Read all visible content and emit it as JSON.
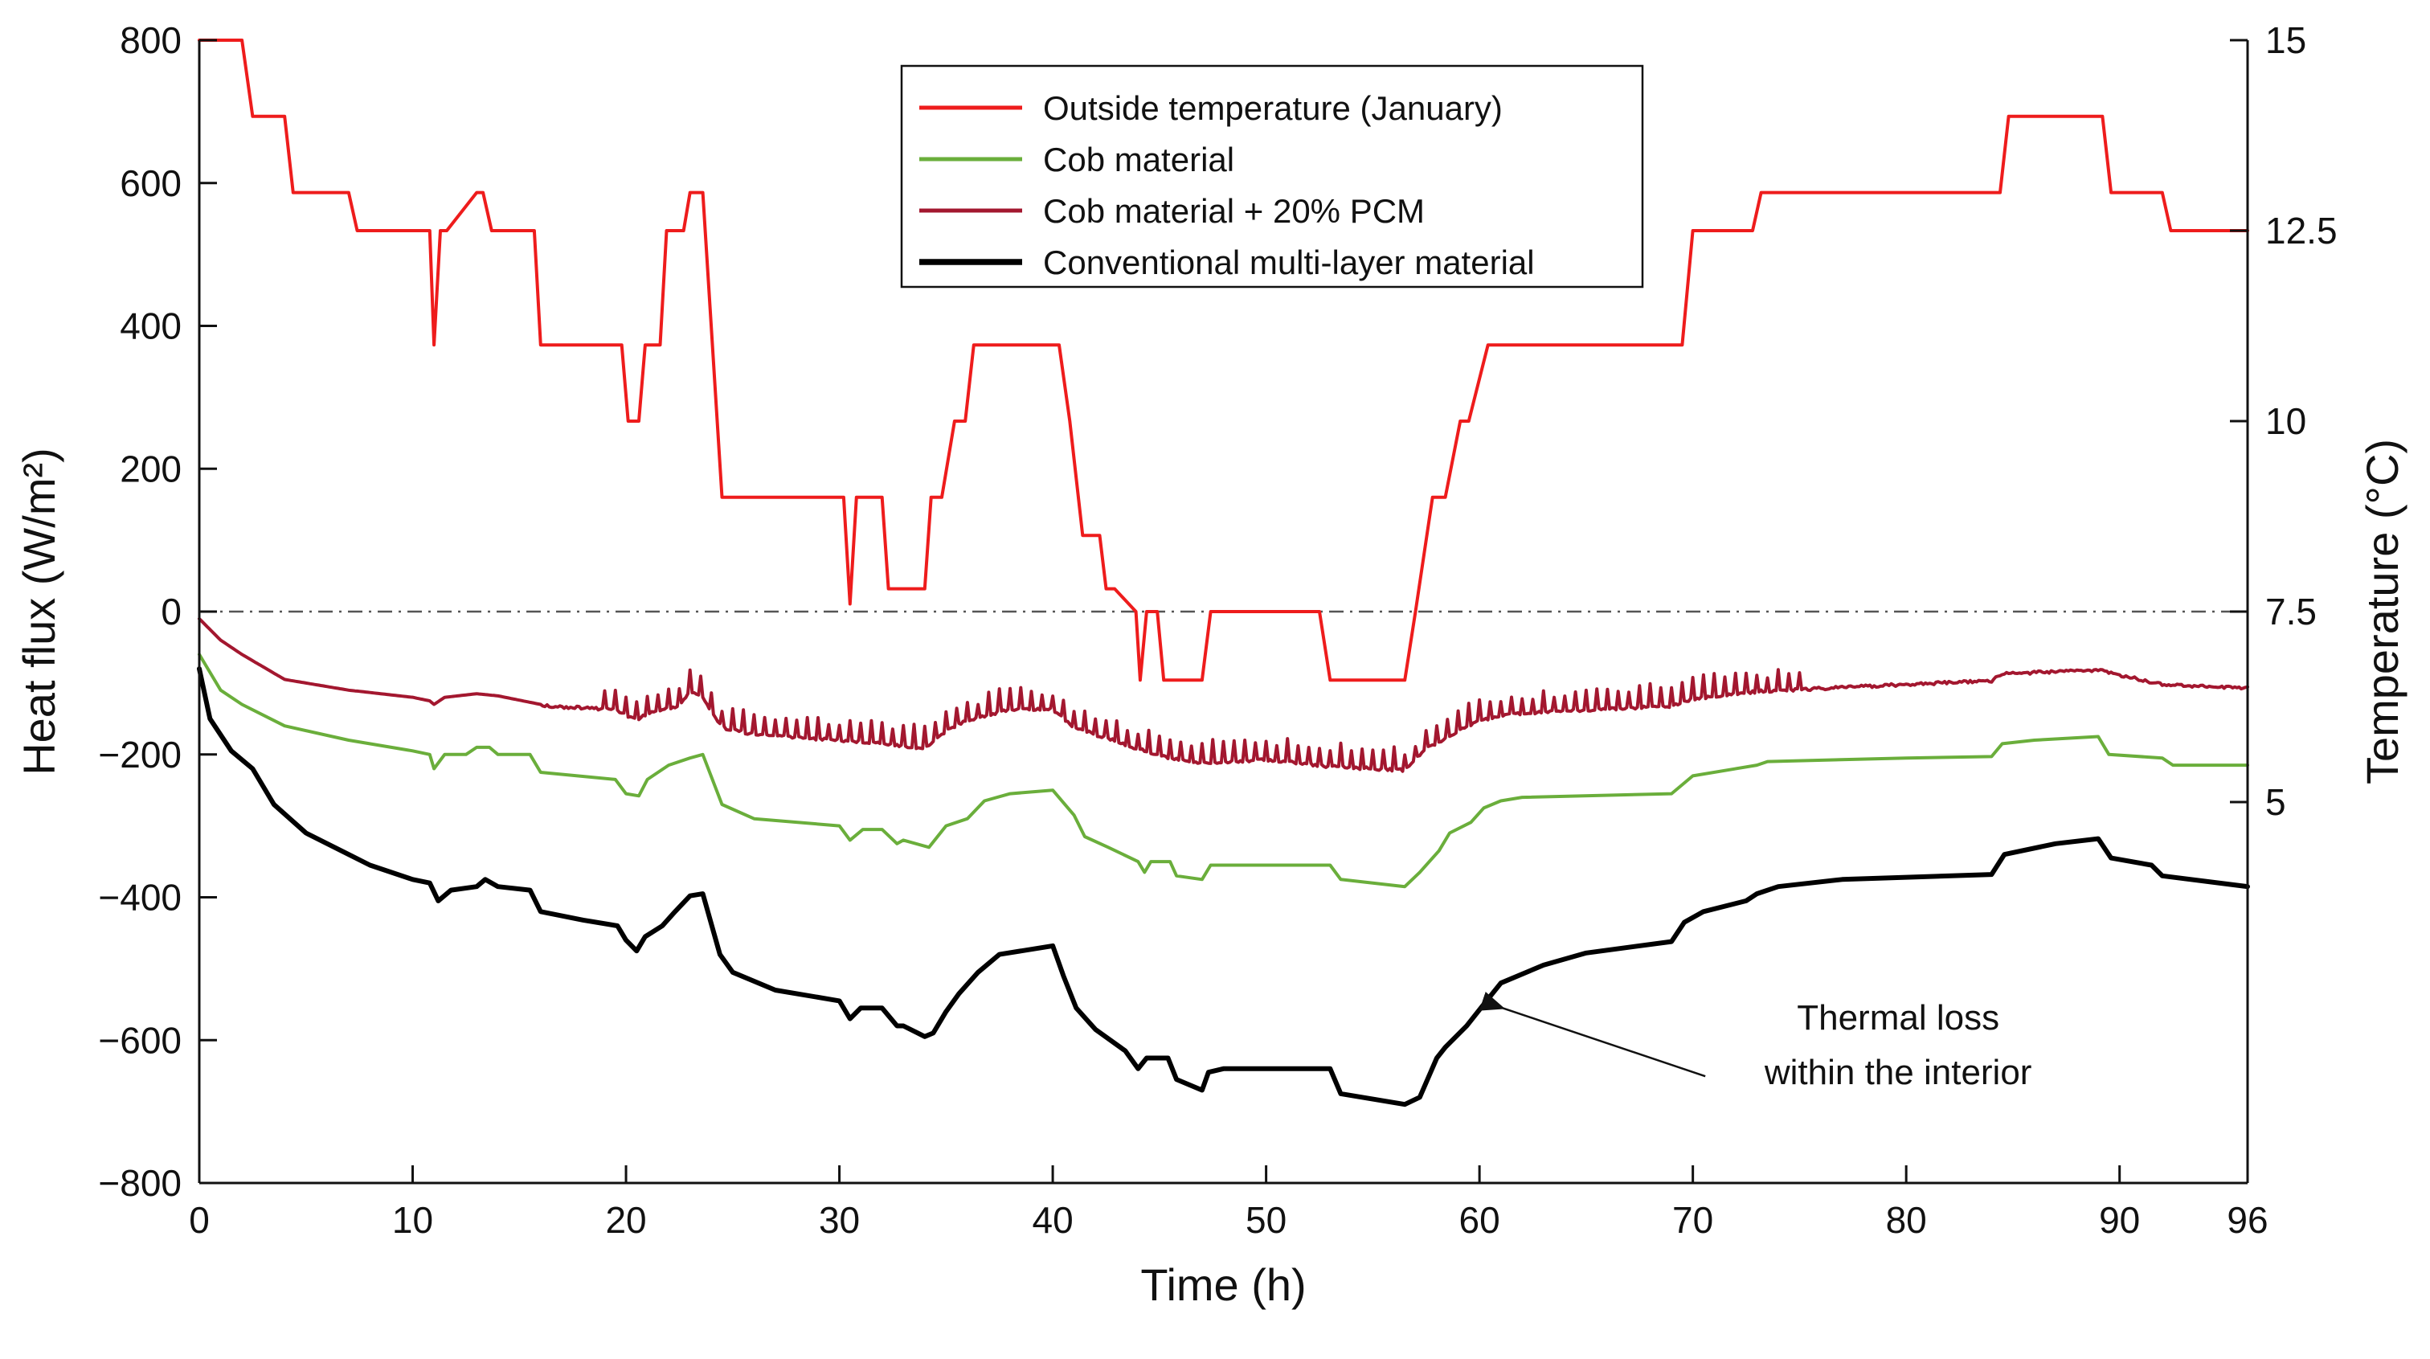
{
  "chart_data": {
    "type": "line",
    "title": "",
    "xlabel": "Time (h)",
    "ylabel_left": "Heat flux (W/m²)",
    "ylabel_right": "Temperature (°C)",
    "xlim": [
      0,
      96
    ],
    "ylim_left": [
      -800,
      800
    ],
    "ylim_right": [
      0,
      15
    ],
    "xticks": [
      0,
      10,
      20,
      30,
      40,
      50,
      60,
      70,
      80,
      90,
      96
    ],
    "xtick_labels": [
      "0",
      "10",
      "20",
      "30",
      "40",
      "50",
      "60",
      "70",
      "80",
      "90",
      "96"
    ],
    "yticks_left": [
      800,
      600,
      400,
      200,
      0,
      -200,
      -400,
      -600,
      -800
    ],
    "ytick_labels_left": [
      "800",
      "600",
      "400",
      "200",
      "0",
      "−200",
      "−400",
      "−600",
      "−800"
    ],
    "yticks_right": [
      15,
      12.5,
      10,
      7.5,
      5
    ],
    "ytick_labels_right": [
      "15",
      "12.5",
      "10",
      "7.5",
      "5"
    ],
    "zero_line": {
      "y": 0,
      "style": "dash-dot",
      "color": "#555555"
    },
    "legend": {
      "placement": "top-center",
      "entries": [
        "Outside temperature (January)",
        "Cob material",
        "Cob material + 20% PCM",
        "Conventional multi-layer material"
      ]
    },
    "annotation": {
      "text_line1": "Thermal loss",
      "text_line2": "within the interior",
      "arrow_target": [
        60.5,
        -550
      ],
      "text_anchor": [
        80,
        -610
      ]
    },
    "series": [
      {
        "name": "Outside temperature (January)",
        "axis": "right",
        "color": "#ee1c1c",
        "width": 2,
        "x": [
          0,
          2,
          2.5,
          4,
          4.4,
          7,
          7.4,
          10.8,
          11,
          11.3,
          11.6,
          13,
          13.3,
          13.7,
          14,
          15.7,
          16,
          19.8,
          20.1,
          20.6,
          20.9,
          21.6,
          21.9,
          22.7,
          23,
          23.6,
          24.5,
          30.2,
          30.5,
          30.8,
          31.3,
          32,
          32.3,
          34,
          34.3,
          34.8,
          35.4,
          35.9,
          36.3,
          36.6,
          40,
          40.3,
          40.8,
          41.4,
          42.2,
          42.5,
          42.9,
          43.9,
          44.1,
          44.4,
          44.9,
          45.2,
          45.6,
          47,
          47.4,
          52.5,
          53,
          56.5,
          57,
          57.8,
          58.4,
          59.1,
          59.5,
          60.4,
          60.8,
          62,
          69.5,
          70,
          72.8,
          73.2,
          84.4,
          84.8,
          89.2,
          89.6,
          92,
          92.4,
          96
        ],
        "values": [
          15,
          15,
          14,
          14,
          13,
          13,
          12.5,
          12.5,
          11,
          12.5,
          12.5,
          13,
          13,
          12.5,
          12.5,
          12.5,
          11,
          11,
          10,
          10,
          11,
          11,
          12.5,
          12.5,
          13,
          13,
          9,
          9,
          7.6,
          9,
          9,
          9,
          7.8,
          7.8,
          9,
          9,
          10,
          10,
          11,
          11,
          11,
          11,
          10,
          8.5,
          8.5,
          7.8,
          7.8,
          7.5,
          6.6,
          7.5,
          7.5,
          6.6,
          6.6,
          6.6,
          7.5,
          7.5,
          6.6,
          6.6,
          7.5,
          9,
          9,
          10,
          10,
          11,
          11,
          11,
          11,
          12.5,
          12.5,
          13,
          13,
          14,
          14,
          13,
          13,
          12.5,
          12.5
        ]
      },
      {
        "name": "Cob material",
        "axis": "left",
        "color": "#6aae3b",
        "width": 2,
        "x": [
          0,
          1,
          2,
          4,
          7,
          10,
          10.8,
          11,
          11.5,
          12.5,
          13,
          13.6,
          14,
          15.5,
          16,
          19.5,
          20,
          20.6,
          21,
          22,
          23,
          23.6,
          24.5,
          26,
          30,
          30.5,
          31.1,
          32,
          32.7,
          33,
          34.2,
          35,
          36,
          36.8,
          38,
          40,
          41,
          41.5,
          42.6,
          44,
          44.3,
          44.6,
          45.5,
          45.8,
          47,
          47.4,
          50,
          53,
          53.5,
          56.5,
          57.2,
          58.1,
          58.6,
          59.6,
          60.2,
          61,
          62,
          69,
          70,
          73,
          73.5,
          80,
          84,
          84.5,
          86,
          89,
          89.5,
          92,
          92.5,
          96
        ],
        "values": [
          -60,
          -110,
          -130,
          -160,
          -180,
          -195,
          -200,
          -220,
          -200,
          -200,
          -190,
          -190,
          -200,
          -200,
          -225,
          -235,
          -255,
          -258,
          -235,
          -215,
          -205,
          -200,
          -270,
          -290,
          -300,
          -320,
          -305,
          -305,
          -325,
          -320,
          -330,
          -300,
          -290,
          -265,
          -255,
          -250,
          -285,
          -315,
          -330,
          -350,
          -365,
          -350,
          -350,
          -370,
          -375,
          -355,
          -355,
          -355,
          -375,
          -385,
          -365,
          -335,
          -310,
          -295,
          -275,
          -265,
          -260,
          -255,
          -230,
          -215,
          -210,
          -205,
          -203,
          -185,
          -180,
          -175,
          -200,
          -205,
          -215,
          -215
        ]
      },
      {
        "name": "Cob material + 20% PCM",
        "axis": "left",
        "color": "#a3172f",
        "width": 2,
        "noisy": true,
        "x": [
          0,
          1,
          2,
          4,
          7,
          10,
          10.8,
          11,
          11.5,
          13,
          14,
          16,
          19.5,
          20.5,
          21,
          22.5,
          23,
          23.5,
          24.5,
          26,
          30,
          32,
          34,
          35,
          36,
          38,
          40,
          41,
          43,
          45,
          47,
          50,
          53,
          56.5,
          57.5,
          59,
          60,
          62,
          69,
          70,
          73,
          80,
          84,
          84.5,
          89,
          92,
          96
        ],
        "values": [
          -10,
          -40,
          -60,
          -95,
          -110,
          -120,
          -125,
          -130,
          -120,
          -115,
          -118,
          -130,
          -135,
          -150,
          -140,
          -130,
          -110,
          -115,
          -160,
          -170,
          -178,
          -182,
          -190,
          -165,
          -150,
          -135,
          -135,
          -160,
          -180,
          -200,
          -210,
          -205,
          -215,
          -220,
          -190,
          -165,
          -150,
          -140,
          -130,
          -120,
          -110,
          -100,
          -95,
          -85,
          -80,
          -100,
          -105
        ]
      },
      {
        "name": "Conventional multi-layer material",
        "axis": "left",
        "color": "#000000",
        "width": 3,
        "x": [
          0,
          0.5,
          1.5,
          2.5,
          3.5,
          5,
          7,
          8,
          10,
          10.8,
          11.2,
          11.8,
          13,
          13.4,
          14,
          15.5,
          16,
          18,
          19.6,
          20,
          20.5,
          20.9,
          21.7,
          22.3,
          23,
          23.6,
          24.4,
          25,
          27,
          30,
          30.5,
          31,
          32,
          32.7,
          33,
          34,
          34.4,
          35,
          35.6,
          36.5,
          37.5,
          40,
          40.5,
          41.1,
          42,
          43.4,
          44,
          44.4,
          45.4,
          45.8,
          47,
          47.3,
          48,
          53,
          53.5,
          56.5,
          57.2,
          58,
          58.4,
          59.4,
          60.2,
          61,
          63,
          65,
          69,
          69.6,
          70.5,
          72.5,
          73,
          74,
          77,
          84,
          84.6,
          87,
          89,
          89.6,
          91.5,
          92,
          96
        ],
        "values": [
          -80,
          -150,
          -195,
          -220,
          -270,
          -310,
          -340,
          -355,
          -375,
          -380,
          -405,
          -390,
          -385,
          -375,
          -385,
          -390,
          -420,
          -432,
          -440,
          -460,
          -475,
          -455,
          -440,
          -420,
          -398,
          -395,
          -480,
          -505,
          -530,
          -545,
          -570,
          -555,
          -555,
          -580,
          -580,
          -595,
          -590,
          -560,
          -535,
          -505,
          -480,
          -468,
          -510,
          -555,
          -585,
          -615,
          -640,
          -625,
          -625,
          -655,
          -670,
          -645,
          -640,
          -640,
          -675,
          -690,
          -680,
          -625,
          -610,
          -580,
          -550,
          -520,
          -495,
          -478,
          -462,
          -435,
          -420,
          -405,
          -395,
          -385,
          -375,
          -368,
          -340,
          -325,
          -318,
          -345,
          -355,
          -370,
          -385
        ]
      }
    ]
  }
}
